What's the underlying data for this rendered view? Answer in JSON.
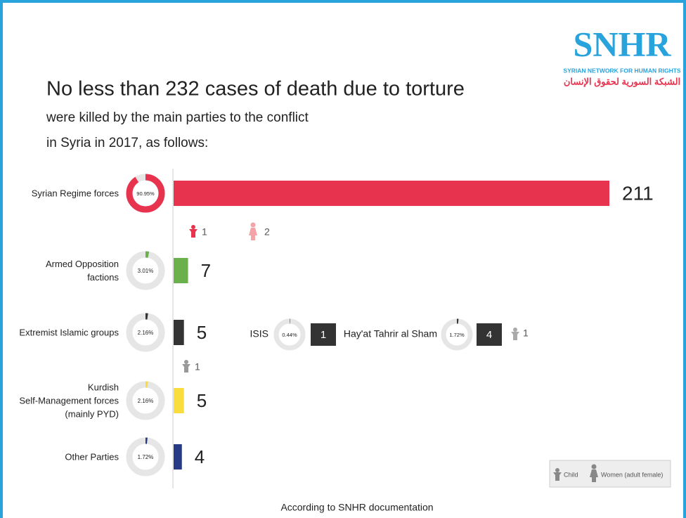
{
  "logo": {
    "name": "SNHR",
    "subtitle": "SYRIAN NETWORK FOR HUMAN RIGHTS",
    "arabic": "الشبكة السورية لحقوق الإنسان"
  },
  "chart_data": {
    "type": "bar",
    "orientation": "horizontal",
    "title": "No less than 232 cases of death due to torture",
    "subtitle": [
      "were killed by the main parties to the conflict",
      "in Syria in 2017, as follows:"
    ],
    "categories": [
      "Syrian Regime forces",
      "Armed Opposition\nfactions",
      "Extremist Islamic groups",
      "Kurdish\nSelf-Management forces\n(mainly PYD)",
      "Other Parties"
    ],
    "values": [
      211,
      7,
      5,
      5,
      4
    ],
    "colors": [
      "#e8334f",
      "#6ab04c",
      "#333333",
      "#f9dc3e",
      "#283a85"
    ],
    "shares": [
      90.95,
      3.01,
      2.16,
      2.16,
      1.72
    ],
    "share_labels": [
      "90.95%",
      "3.01%",
      "2.16%",
      "2.16%",
      "1.72%"
    ],
    "children": [
      1,
      null,
      1,
      null,
      null
    ],
    "women": [
      2,
      null,
      null,
      null,
      null
    ],
    "breakdown": [
      {
        "name": "ISIS",
        "value": 1,
        "share": 0.44,
        "share_label": "0.44%",
        "children": null
      },
      {
        "name": "Hay'at Tahrir al Sham",
        "value": 4,
        "share": 1.72,
        "share_label": "1.72%",
        "children": 1
      }
    ],
    "legend": {
      "child": "Child",
      "women": "Women (adult female)"
    },
    "source": "According to SNHR documentation"
  }
}
